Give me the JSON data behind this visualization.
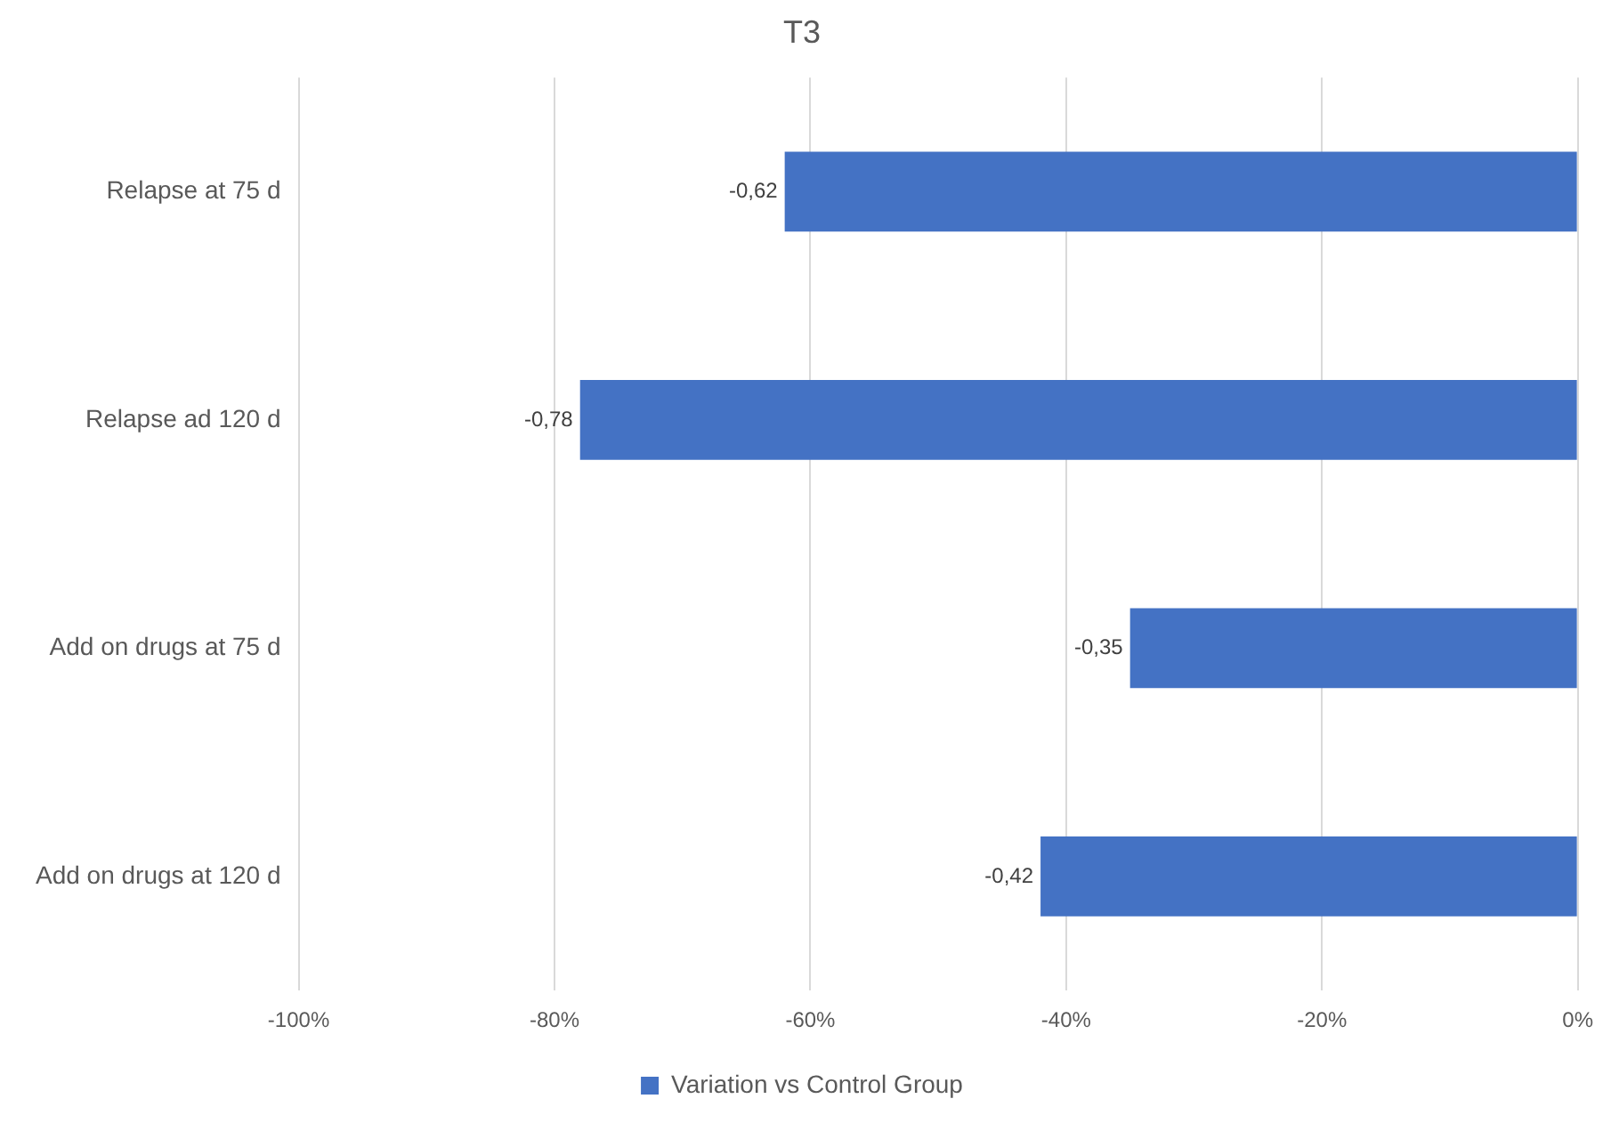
{
  "chart_data": {
    "type": "bar",
    "orientation": "horizontal",
    "title": "T3",
    "categories": [
      "Relapse at 75 d",
      "Relapse ad 120 d",
      "Add on drugs at 75 d",
      "Add on drugs at 120 d"
    ],
    "series": [
      {
        "name": "Variation vs Control Group",
        "color": "#4472c4",
        "values": [
          -0.62,
          -0.78,
          -0.35,
          -0.42
        ],
        "value_labels": [
          "-0,62",
          "-0,78",
          "-0,35",
          "-0,42"
        ]
      }
    ],
    "xlim": [
      -1,
      0
    ],
    "xticks": [
      {
        "value": -1,
        "label": "-100%"
      },
      {
        "value": -0.8,
        "label": "-80%"
      },
      {
        "value": -0.6,
        "label": "-60%"
      },
      {
        "value": -0.4,
        "label": "-40%"
      },
      {
        "value": -0.2,
        "label": "-20%"
      },
      {
        "value": 0,
        "label": "0%"
      }
    ],
    "grid": "x",
    "legend": "bottom"
  }
}
